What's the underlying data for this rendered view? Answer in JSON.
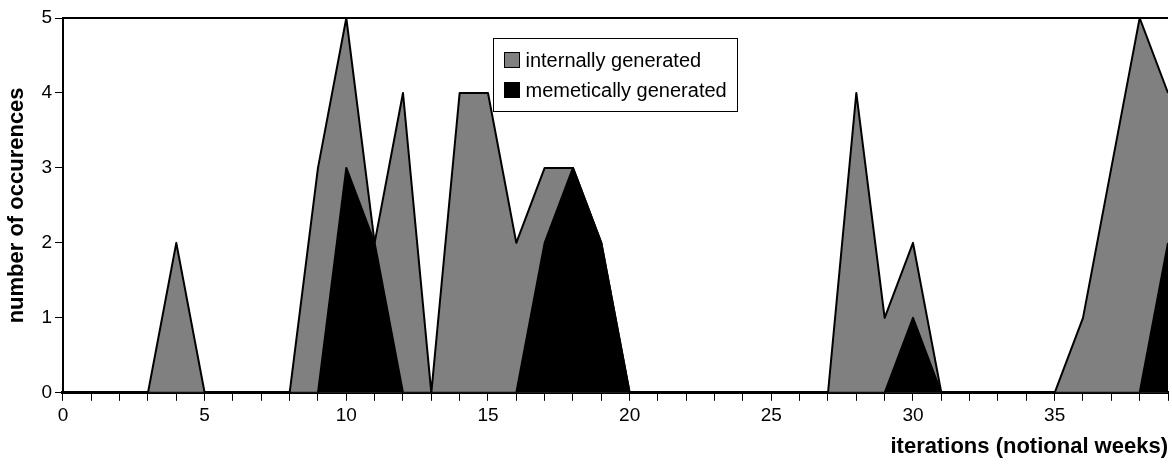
{
  "chart_data": {
    "type": "area",
    "xlabel": "iterations (notional weeks)",
    "ylabel": "number of occurences",
    "x": [
      0,
      1,
      2,
      3,
      4,
      5,
      6,
      7,
      8,
      9,
      10,
      11,
      12,
      13,
      14,
      15,
      16,
      17,
      18,
      19,
      20,
      21,
      22,
      23,
      24,
      25,
      26,
      27,
      28,
      29,
      30,
      31,
      32,
      33,
      34,
      35,
      36,
      37,
      38,
      39
    ],
    "series": [
      {
        "name": "internally generated",
        "color": "#808080",
        "values": [
          0,
          0,
          0,
          0,
          2,
          0,
          0,
          0,
          0,
          3,
          5,
          2,
          4,
          0,
          4,
          4,
          2,
          3,
          3,
          2,
          0,
          0,
          0,
          0,
          0,
          0,
          0,
          0,
          4,
          1,
          2,
          0,
          0,
          0,
          0,
          0,
          1,
          3,
          5,
          4
        ]
      },
      {
        "name": "memetically generated",
        "color": "#000000",
        "values": [
          0,
          0,
          0,
          0,
          0,
          0,
          0,
          0,
          0,
          0,
          3,
          2,
          0,
          0,
          0,
          0,
          0,
          2,
          3,
          2,
          0,
          0,
          0,
          0,
          0,
          0,
          0,
          0,
          0,
          0,
          1,
          0,
          0,
          0,
          0,
          0,
          0,
          0,
          0,
          2
        ]
      }
    ],
    "xlim": [
      0,
      39
    ],
    "xticks": [
      0,
      {
        "value": 1,
        "label": null
      },
      {
        "value": 2,
        "label": null
      },
      {
        "value": 3,
        "label": null
      },
      {
        "value": 4,
        "label": null
      },
      5,
      {
        "value": 6,
        "label": null
      },
      {
        "value": 7,
        "label": null
      },
      {
        "value": 8,
        "label": null
      },
      {
        "value": 9,
        "label": null
      },
      10,
      {
        "value": 11,
        "label": null
      },
      {
        "value": 12,
        "label": null
      },
      {
        "value": 13,
        "label": null
      },
      {
        "value": 14,
        "label": null
      },
      15,
      {
        "value": 16,
        "label": null
      },
      {
        "value": 17,
        "label": null
      },
      {
        "value": 18,
        "label": null
      },
      {
        "value": 19,
        "label": null
      },
      20,
      {
        "value": 21,
        "label": null
      },
      {
        "value": 22,
        "label": null
      },
      {
        "value": 23,
        "label": null
      },
      {
        "value": 24,
        "label": null
      },
      25,
      {
        "value": 26,
        "label": null
      },
      {
        "value": 27,
        "label": null
      },
      {
        "value": 28,
        "label": null
      },
      {
        "value": 29,
        "label": null
      },
      30,
      {
        "value": 31,
        "label": null
      },
      {
        "value": 32,
        "label": null
      },
      {
        "value": 33,
        "label": null
      },
      {
        "value": 34,
        "label": null
      },
      35,
      {
        "value": 36,
        "label": null
      },
      {
        "value": 37,
        "label": null
      },
      {
        "value": 38,
        "label": null
      },
      {
        "value": 39,
        "label": null
      }
    ],
    "ylim": [
      0,
      5
    ],
    "yticks": [
      0,
      1,
      2,
      3,
      4,
      5
    ],
    "grid": false,
    "legend": "top"
  }
}
